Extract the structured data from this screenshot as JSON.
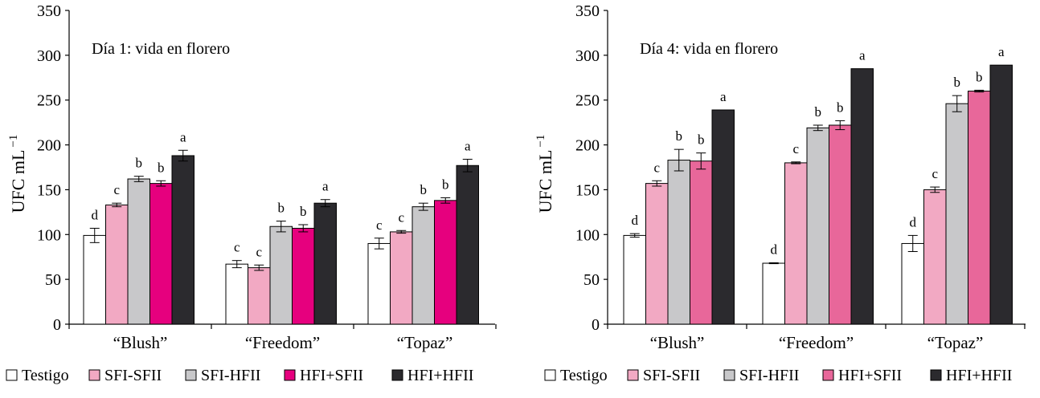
{
  "legend_labels": [
    "Testigo",
    "SFI-SFII",
    "SFI-HFII",
    "HFI+SFII",
    "HFI+HFII"
  ],
  "chart_data": [
    {
      "type": "bar",
      "title": "Día 1: vida en florero",
      "xlabel": "",
      "ylabel": "UFC mL",
      "ylabel_sup": "−1",
      "ylim": [
        0,
        350
      ],
      "yticks": [
        0,
        50,
        100,
        150,
        200,
        250,
        300,
        350
      ],
      "categories": [
        "“Blush”",
        "“Freedom”",
        "“Topaz”"
      ],
      "series": [
        {
          "name": "Testigo",
          "color": "#ffffff",
          "values": [
            99,
            67,
            90
          ],
          "errors": [
            8,
            4,
            6
          ],
          "letters": [
            "d",
            "c",
            "c"
          ]
        },
        {
          "name": "SFI-SFII",
          "color": "#f2a9c3",
          "values": [
            133,
            63,
            103
          ],
          "errors": [
            2,
            3,
            1.5
          ],
          "letters": [
            "c",
            "c",
            "c"
          ]
        },
        {
          "name": "SFI-HFII",
          "color": "#c8c8ca",
          "values": [
            162,
            109,
            131
          ],
          "errors": [
            3,
            6,
            4
          ],
          "letters": [
            "b",
            "b",
            "b"
          ]
        },
        {
          "name": "HFI+SFII",
          "color": "#e6007e",
          "values": [
            157,
            107,
            138
          ],
          "errors": [
            3,
            4,
            3
          ],
          "letters": [
            "b",
            "b",
            "b"
          ]
        },
        {
          "name": "HFI+HFII",
          "color": "#2b2a2e",
          "values": [
            188,
            135,
            177
          ],
          "errors": [
            6,
            4,
            7
          ],
          "letters": [
            "a",
            "a",
            "a"
          ]
        }
      ]
    },
    {
      "type": "bar",
      "title": "Día 4: vida en florero",
      "xlabel": "",
      "ylabel": "UFC mL",
      "ylabel_sup": "−1",
      "ylim": [
        0,
        350
      ],
      "yticks": [
        0,
        50,
        100,
        150,
        200,
        250,
        300,
        350
      ],
      "categories": [
        "“Blush”",
        "“Freedom”",
        "“Topaz”"
      ],
      "series": [
        {
          "name": "Testigo",
          "color": "#ffffff",
          "values": [
            99,
            68,
            90
          ],
          "errors": [
            2,
            0.5,
            9
          ],
          "letters": [
            "d",
            "d",
            "d"
          ]
        },
        {
          "name": "SFI-SFII",
          "color": "#f2a9c3",
          "values": [
            157,
            180,
            150
          ],
          "errors": [
            3,
            1,
            3
          ],
          "letters": [
            "c",
            "c",
            "c"
          ]
        },
        {
          "name": "SFI-HFII",
          "color": "#c8c8ca",
          "values": [
            183,
            219,
            246
          ],
          "errors": [
            12,
            3,
            9
          ],
          "letters": [
            "b",
            "b",
            "b"
          ]
        },
        {
          "name": "HFI+SFII",
          "color": "#e8679a",
          "values": [
            182,
            222,
            260
          ],
          "errors": [
            9,
            5,
            1
          ],
          "letters": [
            "b",
            "b",
            "b"
          ]
        },
        {
          "name": "HFI+HFII",
          "color": "#2b2a2e",
          "values": [
            239,
            285,
            289
          ],
          "errors": [
            0,
            0,
            0
          ],
          "letters": [
            "a",
            "a",
            "a"
          ]
        }
      ]
    }
  ]
}
